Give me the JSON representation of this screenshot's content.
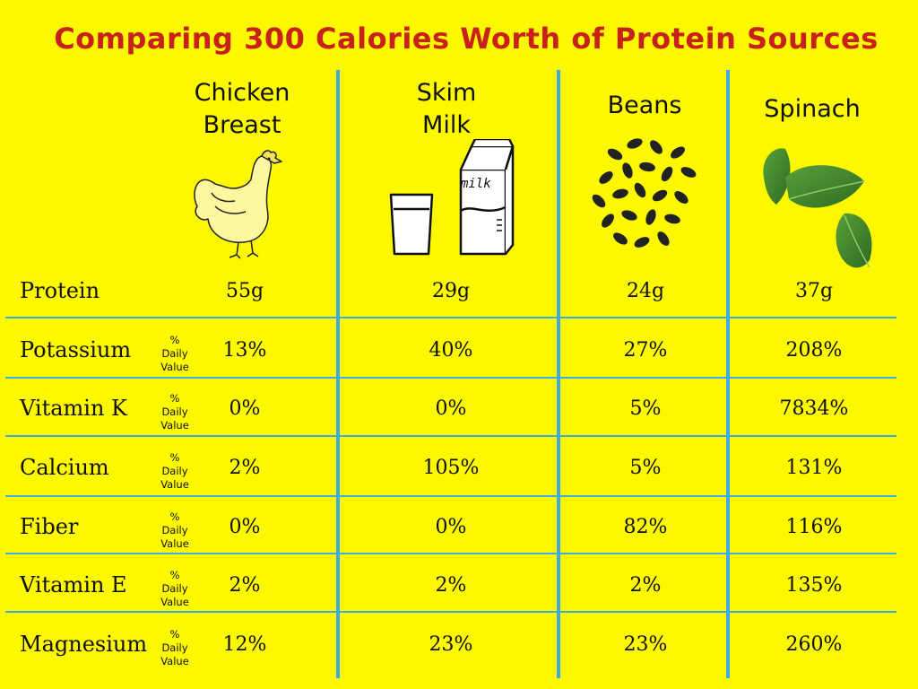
{
  "title": "Comparing 300 Calories Worth of Protein Sources",
  "columns": [
    {
      "line1": "Chicken",
      "line2": "Breast",
      "icon": "chicken-icon"
    },
    {
      "line1": "Skim",
      "line2": "Milk",
      "icon": "milk-carton-and-glass-icon"
    },
    {
      "line1": "Beans",
      "line2": "",
      "icon": "beans-icon"
    },
    {
      "line1": "Spinach",
      "line2": "",
      "icon": "spinach-leaves-icon"
    }
  ],
  "dv_label": {
    "l1": "%",
    "l2": "Daily",
    "l3": "Value"
  },
  "milk_carton_text": "milk",
  "colors": {
    "background": "#fbf800",
    "title": "#c8201a",
    "grid": "#3fa9e0"
  },
  "chart_data": {
    "type": "table",
    "title": "Comparing 300 Calories Worth of Protein Sources",
    "columns": [
      "Chicken Breast",
      "Skim Milk",
      "Beans",
      "Spinach"
    ],
    "rows": [
      {
        "label": "Protein",
        "dv": false,
        "values": [
          "55g",
          "29g",
          "24g",
          "37g"
        ]
      },
      {
        "label": "Potassium",
        "dv": true,
        "values": [
          "13%",
          "40%",
          "27%",
          "208%"
        ]
      },
      {
        "label": "Vitamin K",
        "dv": true,
        "values": [
          "0%",
          "0%",
          "5%",
          "7834%"
        ]
      },
      {
        "label": "Calcium",
        "dv": true,
        "values": [
          "2%",
          "105%",
          "5%",
          "131%"
        ]
      },
      {
        "label": "Fiber",
        "dv": true,
        "values": [
          "0%",
          "0%",
          "82%",
          "116%"
        ]
      },
      {
        "label": "Vitamin E",
        "dv": true,
        "values": [
          "2%",
          "2%",
          "2%",
          "135%"
        ]
      },
      {
        "label": "Magnesium",
        "dv": true,
        "values": [
          "12%",
          "23%",
          "23%",
          "260%"
        ]
      }
    ]
  }
}
